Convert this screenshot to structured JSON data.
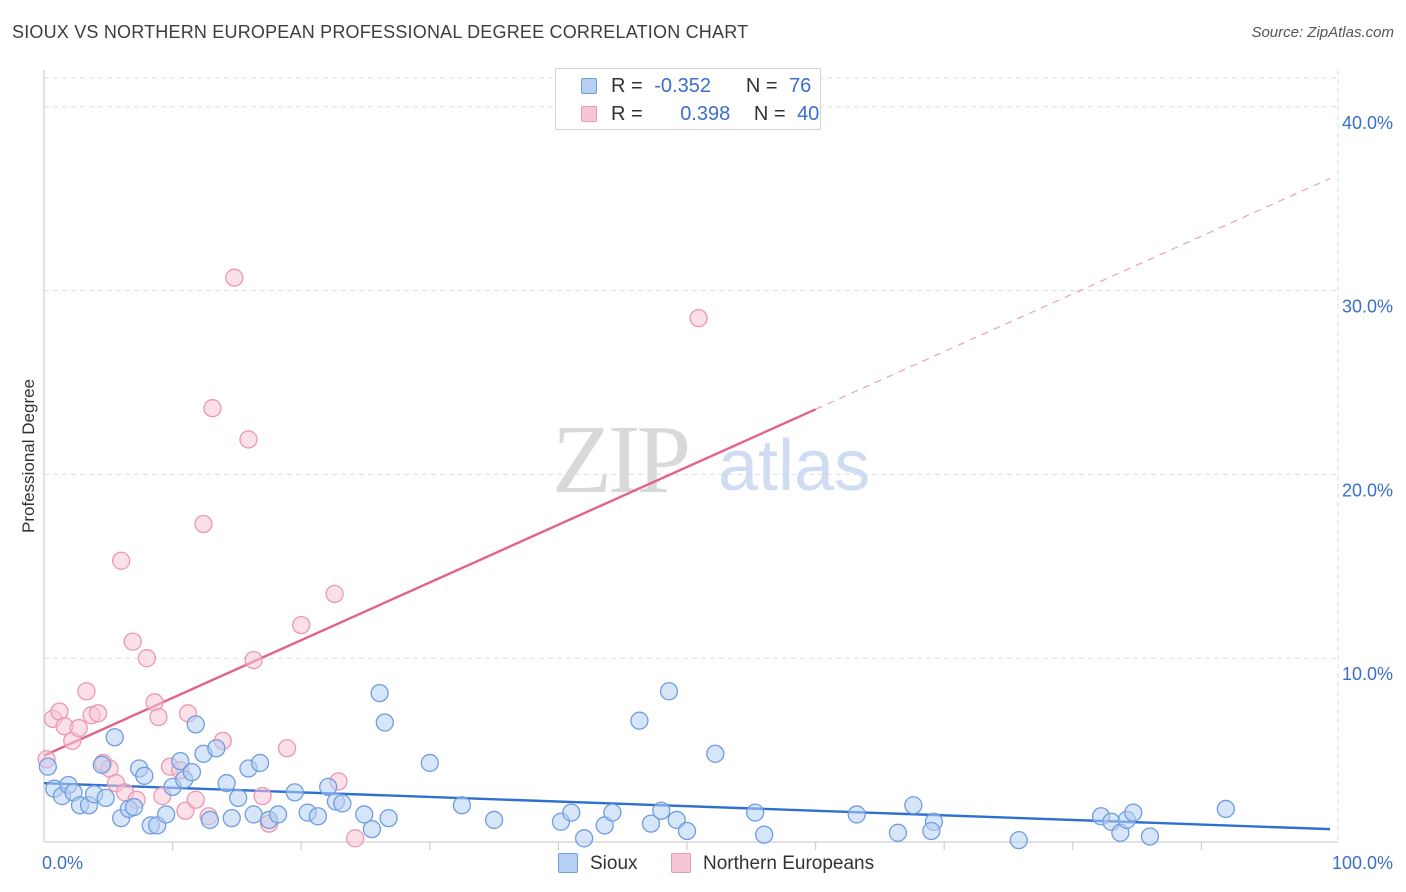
{
  "page": {
    "title": "SIOUX VS NORTHERN EUROPEAN PROFESSIONAL DEGREE CORRELATION CHART",
    "source": "Source: ZipAtlas.com",
    "watermark": {
      "part1": "ZIP",
      "part2": "atlas"
    }
  },
  "legend": {
    "sioux": {
      "r_label": "R =",
      "r_value": "-0.352",
      "n_label": "N =",
      "n_value": "76"
    },
    "northern": {
      "r_label": "R =",
      "r_value": "0.398",
      "n_label": "N =",
      "n_value": "40"
    }
  },
  "colors": {
    "sioux_fill": "#b7cff2",
    "sioux_stroke": "#6f9de0",
    "sioux_line": "#2f6fd0",
    "northern_fill": "#f7c6d6",
    "northern_stroke": "#ec97b4",
    "northern_line": "#e2628d",
    "axis_text": "#3a6fcc",
    "grid": "#dedede"
  },
  "chart_data": {
    "type": "scatter",
    "title": "SIOUX VS NORTHERN EUROPEAN PROFESSIONAL DEGREE CORRELATION CHART",
    "xlabel": "",
    "ylabel": "Professional Degree",
    "xlim": [
      0,
      100
    ],
    "ylim": [
      0,
      42
    ],
    "x_tick_labels": [
      {
        "value": 0,
        "label": "0.0%"
      },
      {
        "value": 100,
        "label": "100.0%"
      }
    ],
    "y_ticks": [
      {
        "value": 10,
        "label": "10.0%"
      },
      {
        "value": 20,
        "label": "20.0%"
      },
      {
        "value": 30,
        "label": "30.0%"
      },
      {
        "value": 40,
        "label": "40.0%"
      }
    ],
    "legend_labels": [
      "Sioux",
      "Northern Europeans"
    ],
    "series": [
      {
        "name": "Sioux",
        "key": "sioux",
        "trend": {
          "x0": 0,
          "y0": 3.2,
          "x1": 100,
          "y1": 0.7,
          "solid_to": 100
        },
        "points": [
          [
            0.3,
            4.1
          ],
          [
            0.8,
            2.9
          ],
          [
            1.4,
            2.5
          ],
          [
            1.9,
            3.1
          ],
          [
            2.3,
            2.7
          ],
          [
            2.8,
            2.0
          ],
          [
            3.5,
            2.0
          ],
          [
            3.9,
            2.6
          ],
          [
            4.5,
            4.2
          ],
          [
            4.8,
            2.4
          ],
          [
            5.5,
            5.7
          ],
          [
            6.0,
            1.3
          ],
          [
            6.6,
            1.8
          ],
          [
            7.0,
            1.9
          ],
          [
            7.4,
            4.0
          ],
          [
            7.8,
            3.6
          ],
          [
            8.3,
            0.9
          ],
          [
            8.8,
            0.9
          ],
          [
            9.5,
            1.5
          ],
          [
            10.0,
            3.0
          ],
          [
            10.6,
            4.4
          ],
          [
            10.9,
            3.4
          ],
          [
            11.5,
            3.8
          ],
          [
            11.8,
            6.4
          ],
          [
            12.4,
            4.8
          ],
          [
            12.9,
            1.2
          ],
          [
            13.4,
            5.1
          ],
          [
            14.2,
            3.2
          ],
          [
            14.6,
            1.3
          ],
          [
            15.1,
            2.4
          ],
          [
            15.9,
            4.0
          ],
          [
            16.3,
            1.5
          ],
          [
            16.8,
            4.3
          ],
          [
            17.5,
            1.2
          ],
          [
            18.2,
            1.5
          ],
          [
            19.5,
            2.7
          ],
          [
            20.5,
            1.6
          ],
          [
            21.3,
            1.4
          ],
          [
            22.1,
            3.0
          ],
          [
            22.7,
            2.2
          ],
          [
            23.2,
            2.1
          ],
          [
            24.9,
            1.5
          ],
          [
            25.5,
            0.7
          ],
          [
            26.1,
            8.1
          ],
          [
            26.5,
            6.5
          ],
          [
            26.8,
            1.3
          ],
          [
            30.0,
            4.3
          ],
          [
            32.5,
            2.0
          ],
          [
            35.0,
            1.2
          ],
          [
            40.2,
            1.1
          ],
          [
            41.0,
            1.6
          ],
          [
            42.0,
            0.2
          ],
          [
            43.6,
            0.9
          ],
          [
            44.2,
            1.6
          ],
          [
            46.3,
            6.6
          ],
          [
            47.2,
            1.0
          ],
          [
            48.0,
            1.7
          ],
          [
            48.6,
            8.2
          ],
          [
            49.2,
            1.2
          ],
          [
            50.0,
            0.6
          ],
          [
            52.2,
            4.8
          ],
          [
            55.3,
            1.6
          ],
          [
            56.0,
            0.4
          ],
          [
            63.2,
            1.5
          ],
          [
            66.4,
            0.5
          ],
          [
            67.6,
            2.0
          ],
          [
            69.2,
            1.1
          ],
          [
            75.8,
            0.1
          ],
          [
            82.2,
            1.4
          ],
          [
            83.0,
            1.1
          ],
          [
            83.7,
            0.5
          ],
          [
            84.2,
            1.2
          ],
          [
            84.7,
            1.6
          ],
          [
            86.0,
            0.3
          ],
          [
            91.9,
            1.8
          ],
          [
            69.0,
            0.6
          ]
        ]
      },
      {
        "name": "Northern Europeans",
        "key": "northern",
        "trend": {
          "x0": 0,
          "y0": 4.7,
          "x1": 100,
          "y1": 36.1,
          "solid_to": 60
        },
        "points": [
          [
            0.2,
            4.5
          ],
          [
            0.7,
            6.7
          ],
          [
            1.2,
            7.1
          ],
          [
            1.6,
            6.3
          ],
          [
            2.2,
            5.5
          ],
          [
            2.7,
            6.2
          ],
          [
            3.3,
            8.2
          ],
          [
            3.7,
            6.9
          ],
          [
            4.2,
            7.0
          ],
          [
            4.6,
            4.3
          ],
          [
            5.1,
            4.0
          ],
          [
            5.6,
            3.2
          ],
          [
            6.0,
            15.3
          ],
          [
            6.3,
            2.7
          ],
          [
            6.9,
            10.9
          ],
          [
            7.2,
            2.3
          ],
          [
            8.0,
            10.0
          ],
          [
            8.6,
            7.6
          ],
          [
            8.9,
            6.8
          ],
          [
            9.2,
            2.5
          ],
          [
            9.8,
            4.1
          ],
          [
            10.6,
            3.9
          ],
          [
            11.0,
            1.7
          ],
          [
            11.2,
            7.0
          ],
          [
            11.8,
            2.3
          ],
          [
            12.4,
            17.3
          ],
          [
            12.8,
            1.4
          ],
          [
            13.1,
            23.6
          ],
          [
            13.9,
            5.5
          ],
          [
            14.8,
            30.7
          ],
          [
            15.9,
            21.9
          ],
          [
            16.3,
            9.9
          ],
          [
            17.0,
            2.5
          ],
          [
            17.5,
            1.0
          ],
          [
            18.9,
            5.1
          ],
          [
            20.0,
            11.8
          ],
          [
            22.6,
            13.5
          ],
          [
            22.9,
            3.3
          ],
          [
            24.2,
            0.2
          ],
          [
            50.9,
            28.5
          ]
        ]
      }
    ]
  }
}
